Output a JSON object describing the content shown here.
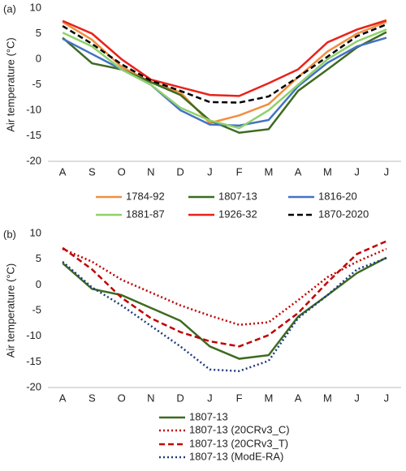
{
  "chart_data": [
    {
      "type": "line",
      "panel_label": "(a)",
      "y_label": "Air temperature (°C)",
      "categories": [
        "A",
        "S",
        "O",
        "N",
        "D",
        "J",
        "F",
        "M",
        "A",
        "M",
        "J",
        "J"
      ],
      "ylim": [
        -20,
        10
      ],
      "yticks": [
        -20,
        -15,
        -10,
        -5,
        0,
        5,
        10
      ],
      "grid": false,
      "series": [
        {
          "name": "1784-92",
          "color": "#f28e3f",
          "line_style": "solid",
          "values": [
            7.3,
            3.8,
            -1.5,
            -4.5,
            -6.5,
            -12.5,
            -11,
            -8.8,
            -3.5,
            1.5,
            5,
            7.3
          ]
        },
        {
          "name": "1807-13",
          "color": "#3d6b21",
          "line_style": "solid",
          "values": [
            4.2,
            -0.8,
            -2,
            -4.5,
            -7,
            -12,
            -14.4,
            -13.7,
            -6.2,
            -2,
            2.3,
            5.3
          ]
        },
        {
          "name": "1816-20",
          "color": "#4472c4",
          "line_style": "solid",
          "values": [
            4,
            1,
            -2,
            -5,
            -10,
            -12.8,
            -13,
            -11.9,
            -5.3,
            -0.7,
            2.5,
            4.2
          ]
        },
        {
          "name": "1881-87",
          "color": "#8fd16a",
          "line_style": "solid",
          "values": [
            5.2,
            2.5,
            -2,
            -5,
            -9.5,
            -12,
            -13.5,
            -10,
            -5,
            0,
            3.5,
            5.8
          ]
        },
        {
          "name": "1926-32",
          "color": "#e8221a",
          "line_style": "solid",
          "values": [
            7.5,
            5,
            0,
            -4,
            -5.5,
            -7,
            -7.2,
            -4.7,
            -2,
            3.3,
            5.8,
            7.6
          ]
        },
        {
          "name": "1870-2020",
          "color": "#000000",
          "line_style": "dashed",
          "values": [
            6.5,
            3,
            -1,
            -4.2,
            -6.2,
            -8.4,
            -8.5,
            -7.3,
            -3.5,
            0.5,
            4.5,
            6.8
          ]
        }
      ]
    },
    {
      "type": "line",
      "panel_label": "(b)",
      "y_label": "Air temperature (°C)",
      "categories": [
        "A",
        "S",
        "O",
        "N",
        "D",
        "J",
        "F",
        "M",
        "A",
        "M",
        "J",
        "J"
      ],
      "ylim": [
        -20,
        10
      ],
      "yticks": [
        -20,
        -15,
        -10,
        -5,
        0,
        5,
        10
      ],
      "grid": false,
      "series": [
        {
          "name": "1807-13",
          "color": "#3d6b21",
          "line_style": "solid",
          "values": [
            4.2,
            -0.8,
            -2,
            -4.5,
            -7,
            -12,
            -14.4,
            -13.7,
            -6.2,
            -2,
            2.3,
            5.3
          ]
        },
        {
          "name": "1807-13 (20CRv3_C)",
          "color": "#c00000",
          "line_style": "dotted",
          "values": [
            7,
            4.5,
            1,
            -1.5,
            -4,
            -6,
            -7.8,
            -7.3,
            -3,
            1.5,
            4.5,
            7
          ]
        },
        {
          "name": "1807-13 (20CRv3_T)",
          "color": "#c00000",
          "line_style": "dashed",
          "values": [
            7.2,
            3,
            -2.5,
            -6.5,
            -9.2,
            -11,
            -12,
            -9.8,
            -5.5,
            0.5,
            6,
            8.5
          ]
        },
        {
          "name": "1807-13 (ModE-RA)",
          "color": "#1f3a7a",
          "line_style": "dotted",
          "values": [
            4.5,
            -0.5,
            -4,
            -8,
            -12,
            -16.5,
            -16.8,
            -14.8,
            -6.5,
            -2,
            3,
            5.2
          ]
        }
      ]
    }
  ]
}
